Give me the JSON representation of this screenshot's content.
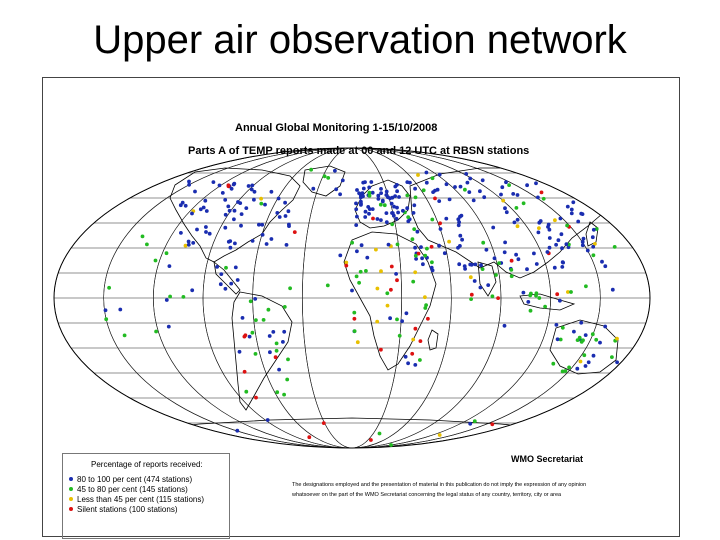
{
  "slide": {
    "title": "Upper air observation network"
  },
  "map": {
    "title_line1": "Annual Global Monitoring   1-15/10/2008",
    "title_line2": "Parts A of TEMP reports made at 00 and 12  UTC at RBSN stations",
    "credit": "WMO Secretariat",
    "disclaimer_line1": "The designations employed and the presentation of material in this publication do not imply the expression of any opinion",
    "disclaimer_line2": "whatsoever on the part of the WMO Secretariat concerning the legal status of any country, territory, city or area"
  },
  "legend": {
    "title": "Percentage of reports received:",
    "items": [
      {
        "label": "80 to 100 per cent (474 stations)",
        "color": "#1a2db0"
      },
      {
        "label": "45 to 80 per cent (145 stations)",
        "color": "#22bb22"
      },
      {
        "label": "Less than 45 per cent (115 stations)",
        "color": "#e8c000"
      },
      {
        "label": "Silent stations (100 stations)",
        "color": "#dd1111"
      }
    ]
  },
  "colors": {
    "ocean": "#ffffff",
    "land_outline": "#000000",
    "grid": "#222222"
  }
}
